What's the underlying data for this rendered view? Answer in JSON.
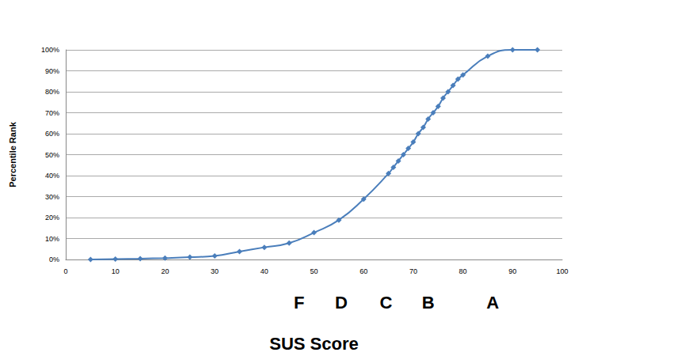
{
  "chart_data": {
    "type": "line",
    "x_label": "SUS Score",
    "y_label": "Percentile Rank",
    "x": [
      5,
      10,
      15,
      20,
      25,
      30,
      35,
      40,
      45,
      50,
      55,
      60,
      65,
      66,
      67,
      68,
      69,
      70,
      71,
      72,
      73,
      74,
      75,
      76,
      77,
      78,
      79,
      80,
      85,
      90,
      95
    ],
    "values": [
      0,
      0.2,
      0.4,
      0.7,
      1.1,
      1.7,
      3.8,
      5.8,
      7.8,
      12.8,
      18.8,
      28.8,
      41,
      44,
      47,
      50,
      53,
      56,
      60,
      63,
      67,
      70,
      73,
      77,
      80,
      83,
      86,
      88,
      97,
      100,
      100
    ],
    "color": "#4a7ebb",
    "marker": "diamond",
    "line_style": "smooth",
    "xlim": [
      0,
      100
    ],
    "xticks": [
      0,
      10,
      20,
      30,
      40,
      50,
      60,
      70,
      80,
      90,
      100
    ],
    "ylim": [
      0,
      100
    ],
    "yticks": [
      {
        "value": 0,
        "label": "0%"
      },
      {
        "value": 10,
        "label": "10%"
      },
      {
        "value": 20,
        "label": "20%"
      },
      {
        "value": 30,
        "label": "30%"
      },
      {
        "value": 40,
        "label": "40%"
      },
      {
        "value": 50,
        "label": "50%"
      },
      {
        "value": 60,
        "label": "60%"
      },
      {
        "value": 70,
        "label": "70%"
      },
      {
        "value": 80,
        "label": "80%"
      },
      {
        "value": 90,
        "label": "90%"
      },
      {
        "value": 100,
        "label": "100%"
      }
    ],
    "grid": true,
    "annotations": [
      {
        "text": "F",
        "x": 47
      },
      {
        "text": "D",
        "x": 55.5
      },
      {
        "text": "C",
        "x": 64.5
      },
      {
        "text": "B",
        "x": 73
      },
      {
        "text": "A",
        "x": 86
      }
    ]
  }
}
